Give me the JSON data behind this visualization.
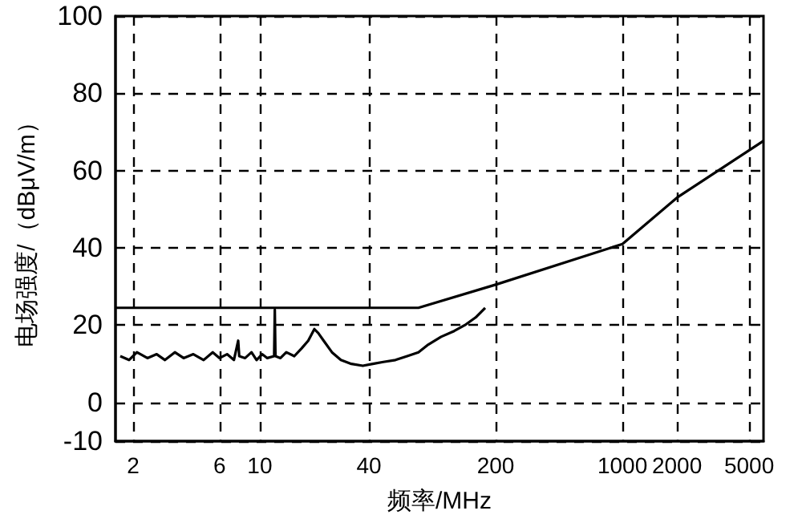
{
  "chart_data": {
    "type": "line",
    "xlabel": "频率/MHz",
    "ylabel": "电场强度/（dBμV/m）",
    "log": "x",
    "grid": true,
    "marker": "none",
    "xlim": [
      1.6,
      6000
    ],
    "xticks": [
      2,
      6,
      10,
      40,
      200,
      1000,
      2000,
      5000
    ],
    "ylim": [
      -10,
      100
    ],
    "yticks": [
      -10,
      0,
      20,
      40,
      60,
      80,
      100
    ],
    "series": [
      {
        "color": "#000000",
        "x": [
          1.6,
          75,
          200,
          1000,
          2000,
          6000
        ],
        "values": [
          24.5,
          24.5,
          30.5,
          41,
          53,
          67.7
        ]
      },
      {
        "color": "#000000",
        "x": [
          1.7,
          1.9,
          2.1,
          2.4,
          2.7,
          3,
          3.4,
          3.8,
          4.3,
          4.9,
          5.5,
          6,
          6.6,
          7.2,
          7.6,
          7.7,
          8.3,
          9,
          9.6,
          10.3,
          11,
          12,
          12.1,
          12.2,
          13,
          14,
          15.5,
          17,
          18.5,
          20,
          21,
          22.5,
          25,
          28,
          32,
          37,
          42,
          48,
          56,
          65,
          75,
          85,
          100,
          118,
          135,
          155,
          175
        ],
        "values": [
          12,
          11,
          13,
          11.5,
          12.5,
          11,
          13,
          11.5,
          12.5,
          11,
          13,
          11.5,
          12.5,
          11,
          16,
          12,
          11.5,
          13,
          11,
          12.5,
          11.5,
          12,
          24,
          12,
          11.5,
          13,
          12,
          14,
          16,
          19,
          18,
          16,
          13,
          11,
          10,
          9.5,
          10,
          10.5,
          11,
          12,
          13,
          15,
          17,
          18.5,
          20,
          22,
          24.5
        ]
      }
    ]
  }
}
